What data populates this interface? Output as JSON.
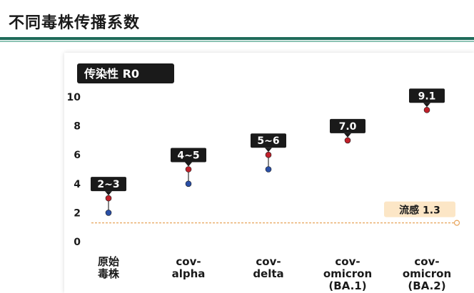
{
  "header": {
    "title": "不同毒株传播系数"
  },
  "colors": {
    "accent": "#1f6b5a",
    "upper_point": "#c0202a",
    "lower_point": "#2a4fa6",
    "label_bg": "#1a1a1a",
    "flu_line": "#e8a45b",
    "flu_label_bg": "#fce6c6"
  },
  "chart_data": {
    "type": "scatter",
    "title": "传染性 R0",
    "xlabel": "",
    "ylabel": "",
    "ylim": [
      0,
      10
    ],
    "yticks": [
      "0",
      "2",
      "4",
      "6",
      "8",
      "10"
    ],
    "grid": false,
    "categories": [
      [
        "原始",
        "毒株"
      ],
      [
        "cov-",
        "alpha"
      ],
      [
        "cov-",
        "delta"
      ],
      [
        "cov-",
        "omicron",
        "(BA.1)"
      ],
      [
        "cov-",
        "omicron",
        "(BA.2)"
      ]
    ],
    "points": [
      {
        "low": 2,
        "high": 3,
        "label": "2~3"
      },
      {
        "low": 4,
        "high": 5,
        "label": "4~5"
      },
      {
        "low": 5,
        "high": 6,
        "label": "5~6"
      },
      {
        "low": null,
        "high": 7.0,
        "label": "7.0"
      },
      {
        "low": null,
        "high": 9.1,
        "label": "9.1"
      }
    ],
    "reference": {
      "value": 1.3,
      "label": "流感 1.3"
    }
  }
}
